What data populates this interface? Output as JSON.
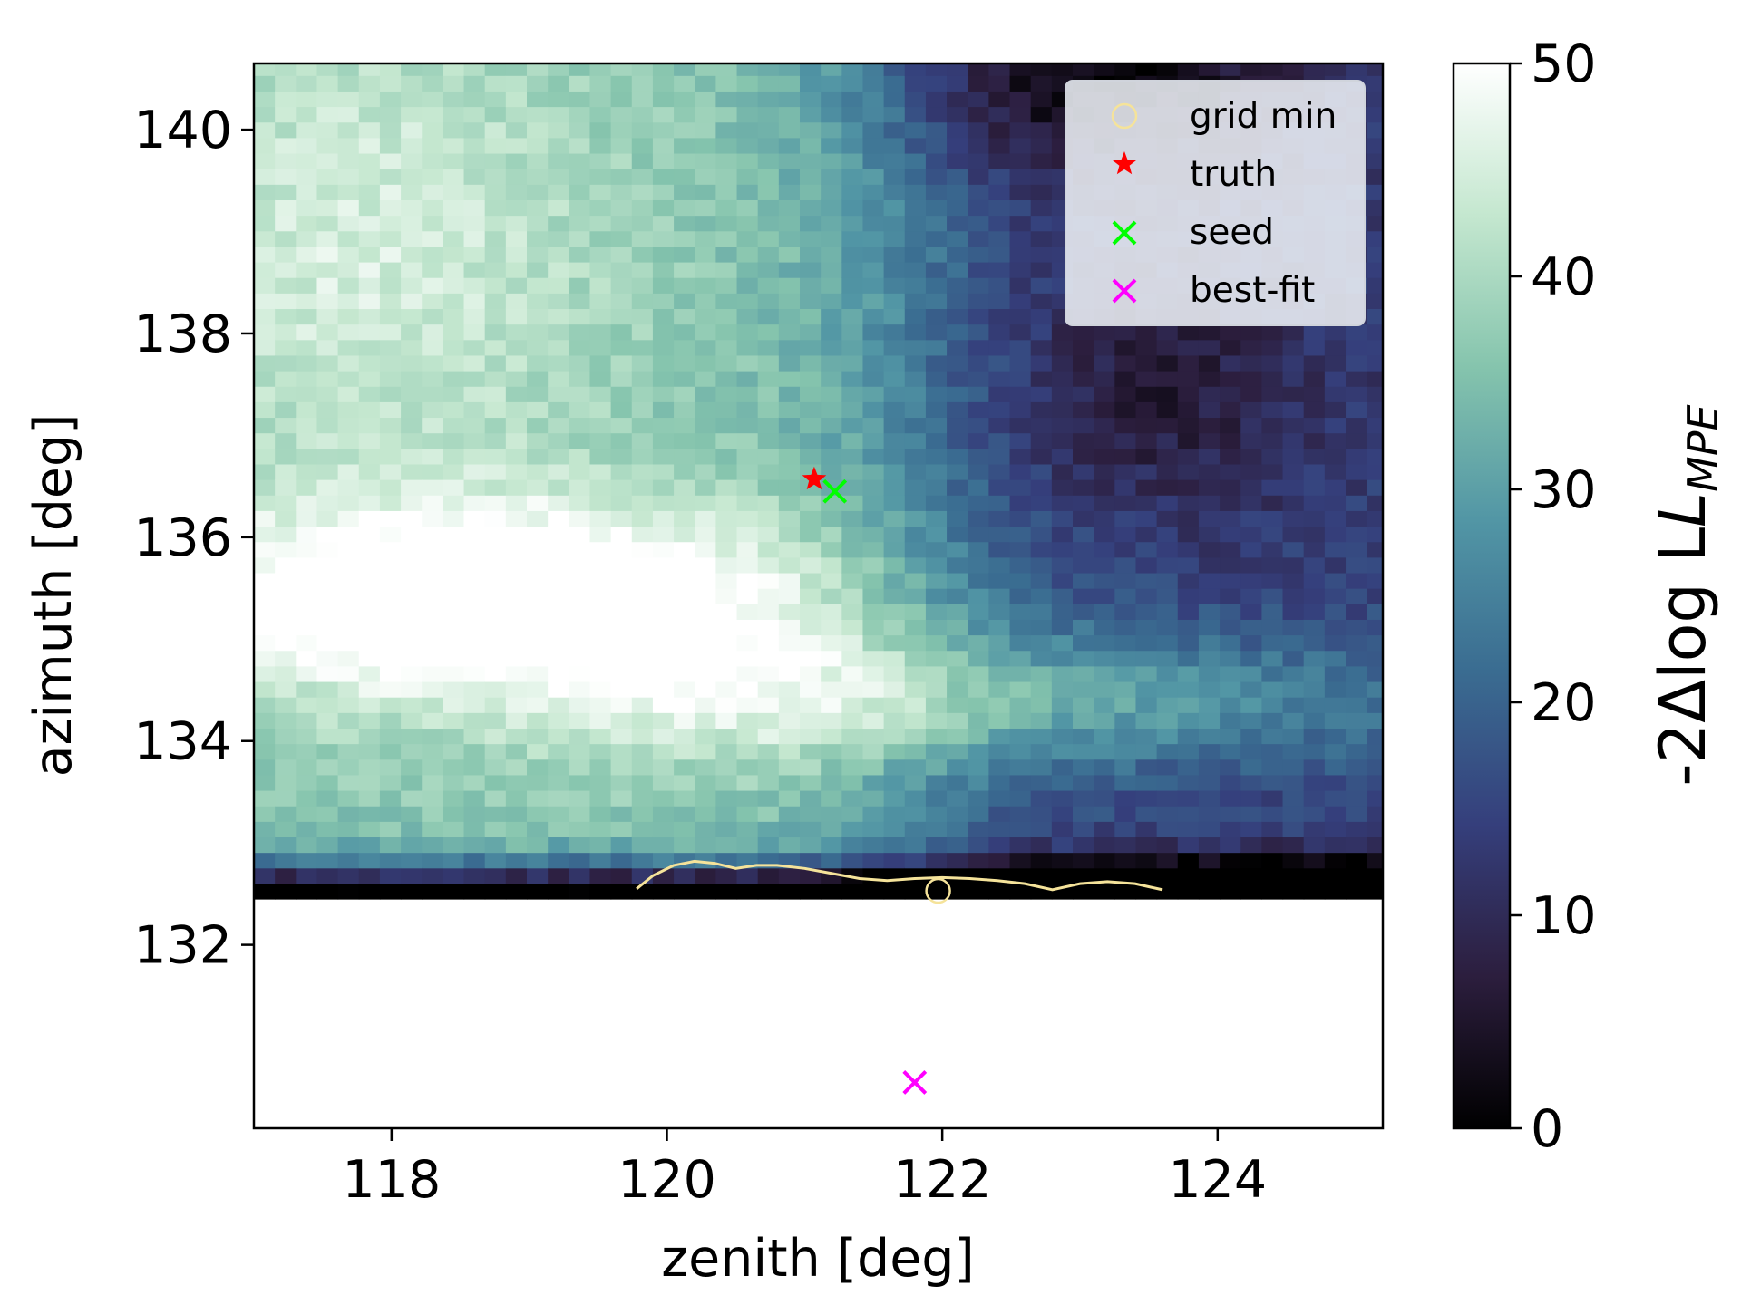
{
  "chart_data": {
    "type": "heatmap",
    "xlabel": "zenith [deg]",
    "ylabel": "azimuth [deg]",
    "colorbar_label": "-2Δlog L",
    "colorbar_label_subscript": "MPE",
    "xlim": [
      117.0,
      125.2
    ],
    "ylim": [
      130.2,
      140.65
    ],
    "x_ticks": [
      118,
      120,
      122,
      124
    ],
    "y_ticks": [
      132,
      134,
      136,
      138,
      140
    ],
    "colorbar_range": [
      0,
      50
    ],
    "colorbar_ticks": [
      0,
      10,
      20,
      30,
      40,
      50
    ],
    "colormap": [
      "#000000",
      "#2c1e3e",
      "#353f7c",
      "#3a6c91",
      "#5296a5",
      "#85c4ad",
      "#c4e7cf",
      "#ffffff"
    ],
    "grid": {
      "x_min": 117.0,
      "x_max": 125.2,
      "y_min": 132.45,
      "y_max": 140.65,
      "cell_size": 0.1525
    },
    "grid_note_values": "cells above 50 are rendered white (clipped); region below azimuth 132.45 has no data",
    "contour_color": "#f5e39a",
    "contour": [
      [
        119.78,
        132.55
      ],
      [
        119.9,
        132.68
      ],
      [
        120.05,
        132.78
      ],
      [
        120.2,
        132.82
      ],
      [
        120.35,
        132.8
      ],
      [
        120.5,
        132.75
      ],
      [
        120.65,
        132.78
      ],
      [
        120.8,
        132.78
      ],
      [
        121.0,
        132.75
      ],
      [
        121.2,
        132.7
      ],
      [
        121.4,
        132.65
      ],
      [
        121.6,
        132.63
      ],
      [
        121.8,
        132.65
      ],
      [
        122.0,
        132.66
      ],
      [
        122.2,
        132.65
      ],
      [
        122.4,
        132.63
      ],
      [
        122.6,
        132.6
      ],
      [
        122.8,
        132.54
      ],
      [
        123.0,
        132.6
      ],
      [
        123.2,
        132.62
      ],
      [
        123.4,
        132.6
      ],
      [
        123.6,
        132.54
      ]
    ],
    "markers": [
      {
        "label": "grid min",
        "x": 121.97,
        "y": 132.53,
        "symbol": "circle",
        "color": "#f5e39a"
      },
      {
        "label": "truth",
        "x": 121.07,
        "y": 136.57,
        "symbol": "star",
        "color": "#ff0000"
      },
      {
        "label": "seed",
        "x": 121.22,
        "y": 136.45,
        "symbol": "x",
        "color": "#00ff00"
      },
      {
        "label": "best-fit",
        "x": 121.8,
        "y": 130.65,
        "symbol": "x",
        "color": "#ff00ff"
      }
    ],
    "legend": [
      "grid min",
      "truth",
      "seed",
      "best-fit"
    ],
    "legend_position": "upper right"
  }
}
